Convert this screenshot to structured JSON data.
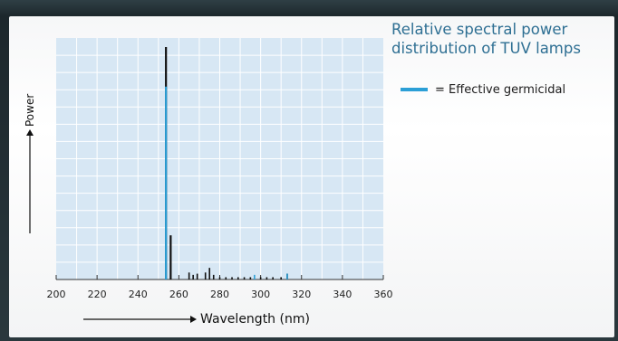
{
  "chart_data": {
    "type": "bar",
    "title": "Relative spectral power distribution of TUV lamps",
    "xlabel": "Wavelength (nm)",
    "ylabel": "Power",
    "xlim": [
      200,
      360
    ],
    "xticks": [
      200,
      220,
      240,
      260,
      280,
      300,
      320,
      340,
      360
    ],
    "ylim": [
      0,
      100
    ],
    "grid": true,
    "legend": {
      "position": "top-right",
      "entries": [
        {
          "label": "= Effective germicidal",
          "color": "#2b9fd6"
        }
      ]
    },
    "series": [
      {
        "name": "= Effective germicidal",
        "color": "#2b9fd6",
        "points": [
          {
            "x": 253.7,
            "y": 83
          },
          {
            "x": 297,
            "y": 2
          },
          {
            "x": 313,
            "y": 2.5
          }
        ]
      },
      {
        "color": "#111111",
        "points": [
          {
            "x": 253.7,
            "y": 100
          },
          {
            "x": 256,
            "y": 19
          },
          {
            "x": 265,
            "y": 3
          },
          {
            "x": 267,
            "y": 2
          },
          {
            "x": 269,
            "y": 2.5
          },
          {
            "x": 273,
            "y": 3
          },
          {
            "x": 275,
            "y": 5
          },
          {
            "x": 277,
            "y": 2
          },
          {
            "x": 280,
            "y": 1
          },
          {
            "x": 283,
            "y": 1
          },
          {
            "x": 286,
            "y": 1
          },
          {
            "x": 289,
            "y": 1
          },
          {
            "x": 292,
            "y": 1
          },
          {
            "x": 295,
            "y": 1
          },
          {
            "x": 300,
            "y": 1
          },
          {
            "x": 303,
            "y": 1
          },
          {
            "x": 306,
            "y": 1
          },
          {
            "x": 310,
            "y": 1
          },
          {
            "x": 313,
            "y": 2.5
          }
        ]
      }
    ],
    "colors": {
      "plot_bg": "#d7e7f4",
      "grid": "#ffffff",
      "title": "#2e6f93",
      "germicidal": "#2b9fd6",
      "total": "#111111"
    }
  }
}
